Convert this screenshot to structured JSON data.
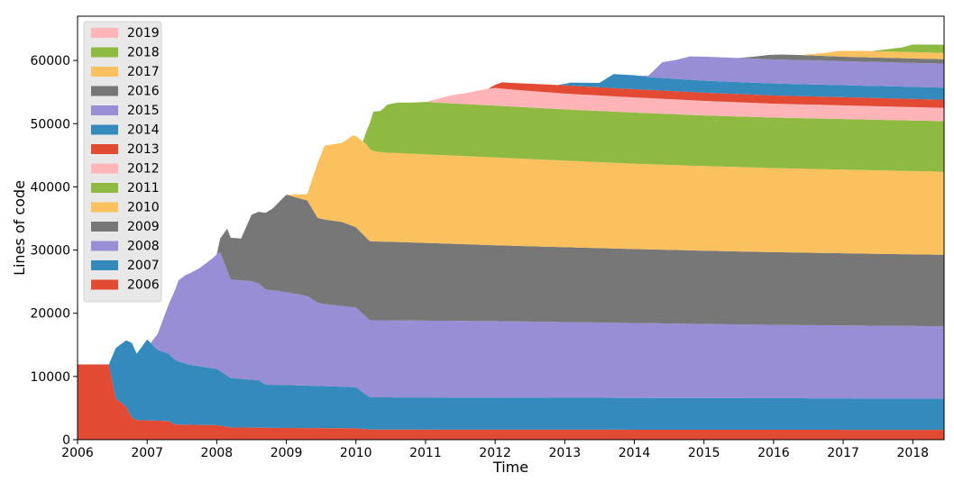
{
  "chart_data": {
    "type": "area",
    "stacked": true,
    "title": "",
    "xlabel": "Time",
    "ylabel": "Lines of code",
    "xlim": [
      2006.0,
      2018.45
    ],
    "ylim": [
      0,
      67000
    ],
    "x_ticks": [
      2006,
      2007,
      2008,
      2009,
      2010,
      2011,
      2012,
      2013,
      2014,
      2015,
      2016,
      2017,
      2018
    ],
    "y_ticks": [
      0,
      10000,
      20000,
      30000,
      40000,
      50000,
      60000
    ],
    "grid": false,
    "legend_position": "upper-left",
    "legend_order": [
      "2019",
      "2018",
      "2017",
      "2016",
      "2015",
      "2014",
      "2013",
      "2012",
      "2011",
      "2010",
      "2009",
      "2008",
      "2007",
      "2006"
    ],
    "series": [
      {
        "name": "2006",
        "color": "#e24a33",
        "start": 2006.0,
        "points": [
          [
            2006.0,
            11900
          ],
          [
            2006.45,
            11900
          ],
          [
            2006.55,
            6500
          ],
          [
            2006.7,
            5200
          ],
          [
            2006.78,
            3500
          ],
          [
            2006.85,
            3100
          ],
          [
            2007.0,
            3050
          ],
          [
            2007.3,
            2950
          ],
          [
            2007.4,
            2400
          ],
          [
            2008.0,
            2300
          ],
          [
            2008.2,
            1950
          ],
          [
            2009.0,
            1850
          ],
          [
            2010.0,
            1800
          ],
          [
            2010.2,
            1600
          ],
          [
            2018.45,
            1550
          ]
        ]
      },
      {
        "name": "2007",
        "color": "#348abd",
        "start": 2006.45,
        "points": [
          [
            2006.45,
            0
          ],
          [
            2006.55,
            8000
          ],
          [
            2006.65,
            9700
          ],
          [
            2006.78,
            11800
          ],
          [
            2006.85,
            10500
          ],
          [
            2007.0,
            12800
          ],
          [
            2007.15,
            11200
          ],
          [
            2007.3,
            10700
          ],
          [
            2007.45,
            10000
          ],
          [
            2007.6,
            9500
          ],
          [
            2008.0,
            8900
          ],
          [
            2008.2,
            7800
          ],
          [
            2008.6,
            7500
          ],
          [
            2008.7,
            6800
          ],
          [
            2009.0,
            6800
          ],
          [
            2010.0,
            6500
          ],
          [
            2010.2,
            5100
          ],
          [
            2018.45,
            4950
          ]
        ]
      },
      {
        "name": "2008",
        "color": "#988ed5",
        "start": 2007.05,
        "points": [
          [
            2007.05,
            0
          ],
          [
            2007.15,
            2500
          ],
          [
            2007.3,
            7500
          ],
          [
            2007.45,
            12800
          ],
          [
            2007.55,
            14000
          ],
          [
            2007.75,
            15500
          ],
          [
            2007.95,
            17500
          ],
          [
            2008.05,
            18800
          ],
          [
            2008.2,
            15600
          ],
          [
            2008.5,
            15600
          ],
          [
            2008.7,
            15100
          ],
          [
            2009.0,
            14700
          ],
          [
            2009.3,
            14200
          ],
          [
            2009.45,
            13200
          ],
          [
            2009.55,
            13000
          ],
          [
            2010.0,
            12600
          ],
          [
            2010.2,
            12200
          ],
          [
            2012.0,
            12100
          ],
          [
            2016.0,
            11600
          ],
          [
            2018.45,
            11450
          ]
        ]
      },
      {
        "name": "2009",
        "color": "#777777",
        "start": 2008.0,
        "points": [
          [
            2008.0,
            0
          ],
          [
            2008.15,
            6600
          ],
          [
            2008.35,
            6600
          ],
          [
            2008.5,
            10500
          ],
          [
            2008.8,
            12900
          ],
          [
            2009.0,
            15400
          ],
          [
            2009.3,
            15100
          ],
          [
            2009.45,
            13400
          ],
          [
            2009.8,
            13300
          ],
          [
            2010.0,
            12700
          ],
          [
            2010.2,
            12500
          ],
          [
            2011.0,
            12300
          ],
          [
            2012.0,
            12000
          ],
          [
            2014.0,
            11700
          ],
          [
            2016.0,
            11500
          ],
          [
            2018.45,
            11300
          ]
        ]
      },
      {
        "name": "2010",
        "color": "#fbc15e",
        "start": 2009.0,
        "points": [
          [
            2009.0,
            0
          ],
          [
            2009.3,
            1000
          ],
          [
            2009.45,
            8700
          ],
          [
            2009.55,
            11700
          ],
          [
            2009.8,
            12500
          ],
          [
            2009.95,
            14300
          ],
          [
            2010.15,
            14800
          ],
          [
            2010.25,
            14300
          ],
          [
            2010.4,
            14100
          ],
          [
            2011.0,
            14000
          ],
          [
            2012.0,
            13900
          ],
          [
            2013.0,
            13700
          ],
          [
            2014.0,
            13500
          ],
          [
            2015.0,
            13400
          ],
          [
            2016.0,
            13300
          ],
          [
            2018.45,
            13150
          ]
        ]
      },
      {
        "name": "2011",
        "color": "#8eba42",
        "start": 2010.1,
        "points": [
          [
            2010.1,
            0
          ],
          [
            2010.25,
            6200
          ],
          [
            2010.35,
            6500
          ],
          [
            2010.45,
            7600
          ],
          [
            2010.6,
            8000
          ],
          [
            2010.8,
            8100
          ],
          [
            2011.0,
            8300
          ],
          [
            2012.0,
            8200
          ],
          [
            2013.0,
            8100
          ],
          [
            2014.0,
            8100
          ],
          [
            2015.0,
            8000
          ],
          [
            2016.0,
            8000
          ],
          [
            2018.45,
            8000
          ]
        ]
      },
      {
        "name": "2012",
        "color": "#ffb5b8",
        "start": 2011.0,
        "points": [
          [
            2011.0,
            0
          ],
          [
            2011.15,
            500
          ],
          [
            2011.35,
            1200
          ],
          [
            2011.6,
            1800
          ],
          [
            2011.85,
            2500
          ],
          [
            2012.0,
            2800
          ],
          [
            2012.2,
            2700
          ],
          [
            2013.0,
            2500
          ],
          [
            2014.0,
            2400
          ],
          [
            2015.0,
            2300
          ],
          [
            2016.0,
            2200
          ],
          [
            2018.45,
            2100
          ]
        ]
      },
      {
        "name": "2013",
        "color": "#e24a33",
        "start": 2011.9,
        "points": [
          [
            2011.9,
            0
          ],
          [
            2012.1,
            1000
          ],
          [
            2012.7,
            1200
          ],
          [
            2013.0,
            1300
          ],
          [
            2014.0,
            1300
          ],
          [
            2015.0,
            1300
          ],
          [
            2016.0,
            1300
          ],
          [
            2018.45,
            1300
          ]
        ]
      },
      {
        "name": "2014",
        "color": "#348abd",
        "start": 2012.9,
        "points": [
          [
            2012.9,
            0
          ],
          [
            2013.1,
            500
          ],
          [
            2013.5,
            700
          ],
          [
            2013.7,
            2200
          ],
          [
            2014.0,
            2200
          ],
          [
            2014.25,
            2000
          ],
          [
            2015.0,
            1900
          ],
          [
            2016.0,
            1900
          ],
          [
            2018.45,
            1900
          ]
        ]
      },
      {
        "name": "2015",
        "color": "#988ed5",
        "start": 2014.05,
        "points": [
          [
            2014.05,
            0
          ],
          [
            2014.2,
            200
          ],
          [
            2014.4,
            2500
          ],
          [
            2014.6,
            3000
          ],
          [
            2014.8,
            3700
          ],
          [
            2015.0,
            3800
          ],
          [
            2016.0,
            3800
          ],
          [
            2017.0,
            3800
          ],
          [
            2018.45,
            3800
          ]
        ]
      },
      {
        "name": "2016",
        "color": "#777777",
        "start": 2015.5,
        "points": [
          [
            2015.5,
            0
          ],
          [
            2015.7,
            300
          ],
          [
            2015.95,
            700
          ],
          [
            2016.1,
            800
          ],
          [
            2016.5,
            800
          ],
          [
            2017.0,
            700
          ],
          [
            2018.45,
            700
          ]
        ]
      },
      {
        "name": "2017",
        "color": "#fbc15e",
        "start": 2016.4,
        "points": [
          [
            2016.4,
            0
          ],
          [
            2016.7,
            400
          ],
          [
            2016.95,
            900
          ],
          [
            2017.3,
            1000
          ],
          [
            2018.0,
            1000
          ],
          [
            2018.45,
            1000
          ]
        ]
      },
      {
        "name": "2018",
        "color": "#8eba42",
        "start": 2017.4,
        "points": [
          [
            2017.4,
            0
          ],
          [
            2017.6,
            300
          ],
          [
            2017.85,
            700
          ],
          [
            2018.0,
            1200
          ],
          [
            2018.45,
            1300
          ]
        ]
      },
      {
        "name": "2019",
        "color": "#ffb5b8",
        "start": 2018.0,
        "points": [
          [
            2018.0,
            0
          ],
          [
            2018.45,
            0
          ]
        ]
      }
    ]
  }
}
